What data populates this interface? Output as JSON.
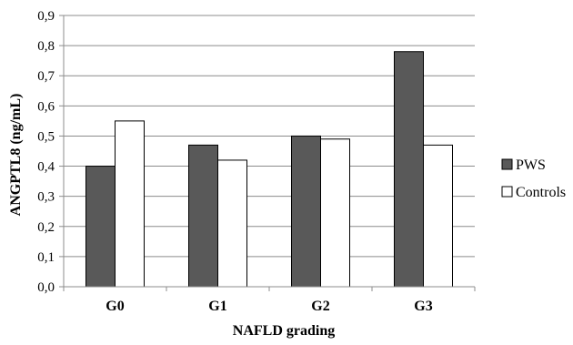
{
  "chart_data": {
    "type": "bar",
    "categories": [
      "G0",
      "G1",
      "G2",
      "G3"
    ],
    "series": [
      {
        "name": "PWS",
        "values": [
          0.4,
          0.47,
          0.5,
          0.78
        ],
        "color": "#595959"
      },
      {
        "name": "Controls",
        "values": [
          0.55,
          0.42,
          0.49,
          0.47
        ],
        "color": "#ffffff"
      }
    ],
    "title": "",
    "xlabel": "NAFLD grading",
    "ylabel": "ANGPTL8 (ng/mL)",
    "ylim": [
      0,
      0.9
    ],
    "yticks": [
      "0,0",
      "0,1",
      "0,2",
      "0,3",
      "0,4",
      "0,5",
      "0,6",
      "0,7",
      "0,8",
      "0,9"
    ],
    "grid": true,
    "legend_position": "right"
  }
}
